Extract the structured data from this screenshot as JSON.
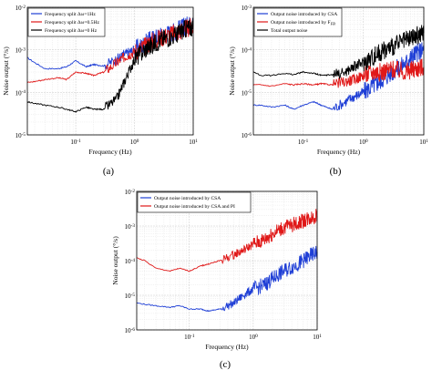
{
  "panels": [
    {
      "label": "(a)",
      "chart_data": {
        "type": "line",
        "xlabel": "Frequency (Hz)",
        "ylabel": "Noise output (°/s)",
        "xscale": "log",
        "yscale": "log",
        "xlim": [
          0.015,
          10
        ],
        "ylim": [
          1e-05,
          0.01
        ],
        "x_ticks": [
          "10^{-1}",
          "10^{0}",
          "10^{1}"
        ],
        "y_ticks": [
          "10^{-5}",
          "10^{-4}",
          "10^{-3}",
          "10^{-2}"
        ],
        "grid": true,
        "legend_position": "top-left",
        "series": [
          {
            "name": "Frequency split Δω=1Hz",
            "color": "#1f3fd6",
            "x": [
              0.015,
              0.02,
              0.03,
              0.05,
              0.07,
              0.1,
              0.15,
              0.2,
              0.3,
              0.5,
              0.7,
              1,
              1.5,
              2,
              3,
              5,
              7,
              10
            ],
            "y": [
              0.00065,
              0.0005,
              0.00036,
              0.00036,
              0.0004,
              0.00055,
              0.0004,
              0.00045,
              0.00042,
              0.0006,
              0.0008,
              0.001,
              0.0014,
              0.0018,
              0.0022,
              0.0028,
              0.0035,
              0.0042
            ]
          },
          {
            "name": "Frequency split Δω=0.5Hz",
            "color": "#e01818",
            "x": [
              0.015,
              0.02,
              0.03,
              0.05,
              0.07,
              0.1,
              0.15,
              0.2,
              0.3,
              0.5,
              0.7,
              1,
              1.5,
              2,
              3,
              5,
              7,
              10
            ],
            "y": [
              0.00017,
              0.00018,
              0.0002,
              0.00022,
              0.0002,
              0.0003,
              0.00028,
              0.00025,
              0.0003,
              0.0005,
              0.0007,
              0.0009,
              0.0012,
              0.0016,
              0.002,
              0.0025,
              0.003,
              0.0035
            ]
          },
          {
            "name": "Frequency split Δω=0 Hz",
            "color": "#000000",
            "x": [
              0.015,
              0.02,
              0.03,
              0.05,
              0.07,
              0.1,
              0.15,
              0.2,
              0.3,
              0.5,
              0.7,
              1,
              1.5,
              2,
              3,
              5,
              7,
              10
            ],
            "y": [
              6e-05,
              5.5e-05,
              5e-05,
              4.5e-05,
              4e-05,
              3.5e-05,
              4.5e-05,
              4e-05,
              4e-05,
              7e-05,
              0.0002,
              0.0006,
              0.001,
              0.0013,
              0.0018,
              0.0022,
              0.003,
              0.0035
            ]
          }
        ]
      }
    },
    {
      "label": "(b)",
      "chart_data": {
        "type": "line",
        "xlabel": "Frequency (Hz)",
        "ylabel": "Noise output (°/s)",
        "xscale": "log",
        "yscale": "log",
        "xlim": [
          0.015,
          10
        ],
        "ylim": [
          1e-06,
          0.001
        ],
        "x_ticks": [
          "10^{-1}",
          "10^{0}",
          "10^{1}"
        ],
        "y_ticks": [
          "10^{-6}",
          "10^{-5}",
          "10^{-4}",
          "10^{-3}"
        ],
        "grid": true,
        "legend_position": "top-left",
        "series": [
          {
            "name": "Output noise introduced by CSA",
            "color": "#1f3fd6",
            "x": [
              0.015,
              0.02,
              0.03,
              0.05,
              0.07,
              0.1,
              0.15,
              0.2,
              0.3,
              0.5,
              0.7,
              1,
              1.5,
              2,
              3,
              5,
              7,
              10
            ],
            "y": [
              5e-06,
              5e-06,
              4.5e-06,
              5e-06,
              4e-06,
              5e-06,
              6e-06,
              5e-06,
              4e-06,
              6e-06,
              8e-06,
              1e-05,
              1.5e-05,
              2e-05,
              3e-05,
              5e-05,
              8e-05,
              0.0001
            ]
          },
          {
            "name": "Output noise introduced by F_{FB}",
            "color": "#e01818",
            "x": [
              0.015,
              0.02,
              0.03,
              0.05,
              0.07,
              0.1,
              0.15,
              0.2,
              0.3,
              0.5,
              0.7,
              1,
              1.5,
              2,
              3,
              5,
              7,
              10
            ],
            "y": [
              1.5e-05,
              1.5e-05,
              1.4e-05,
              1.6e-05,
              1.5e-05,
              1.6e-05,
              1.5e-05,
              1.6e-05,
              1.5e-05,
              1.8e-05,
              2e-05,
              2.5e-05,
              3e-05,
              3e-05,
              3.5e-05,
              3e-05,
              3.5e-05,
              4e-05
            ]
          },
          {
            "name": "Total output noise",
            "color": "#000000",
            "x": [
              0.015,
              0.02,
              0.03,
              0.05,
              0.07,
              0.1,
              0.15,
              0.2,
              0.3,
              0.5,
              0.7,
              1,
              1.5,
              2,
              3,
              5,
              7,
              10
            ],
            "y": [
              3e-05,
              2.5e-05,
              2.5e-05,
              2.8e-05,
              2.6e-05,
              3e-05,
              2.8e-05,
              2.5e-05,
              2.6e-05,
              3e-05,
              4e-05,
              5e-05,
              7e-05,
              9e-05,
              0.00012,
              0.00016,
              0.0002,
              0.00025
            ]
          }
        ]
      }
    },
    {
      "label": "(c)",
      "chart_data": {
        "type": "line",
        "xlabel": "Frequency (Hz)",
        "ylabel": "Noise output (°/s)",
        "xscale": "log",
        "yscale": "log",
        "xlim": [
          0.015,
          10
        ],
        "ylim": [
          1e-06,
          0.01
        ],
        "x_ticks": [
          "10^{-1}",
          "10^{0}",
          "10^{1}"
        ],
        "y_ticks": [
          "10^{-6}",
          "10^{-5}",
          "10^{-4}",
          "10^{-3}",
          "10^{-2}"
        ],
        "grid": true,
        "legend_position": "top-left",
        "series": [
          {
            "name": "Output noise introduced by CSA",
            "color": "#1f3fd6",
            "x": [
              0.015,
              0.02,
              0.03,
              0.05,
              0.07,
              0.1,
              0.15,
              0.2,
              0.3,
              0.5,
              0.7,
              1,
              1.5,
              2,
              3,
              5,
              7,
              10
            ],
            "y": [
              6e-06,
              5.5e-06,
              5e-06,
              4.5e-06,
              5e-06,
              4e-06,
              4e-06,
              3.5e-06,
              4e-06,
              6e-06,
              1e-05,
              1.5e-05,
              2e-05,
              3e-05,
              5e-05,
              8e-05,
              0.00012,
              0.00018
            ]
          },
          {
            "name": "Output noise introduced by CSA and PI",
            "color": "#e01818",
            "x": [
              0.015,
              0.02,
              0.03,
              0.05,
              0.07,
              0.1,
              0.15,
              0.2,
              0.3,
              0.5,
              0.7,
              1,
              1.5,
              2,
              3,
              5,
              7,
              10
            ],
            "y": [
              0.00012,
              0.0001,
              6e-05,
              5e-05,
              6e-05,
              5e-05,
              7e-05,
              8e-05,
              0.0001,
              0.00015,
              0.0002,
              0.0003,
              0.0004,
              0.0006,
              0.0009,
              0.0012,
              0.0016,
              0.002
            ]
          }
        ]
      }
    }
  ]
}
